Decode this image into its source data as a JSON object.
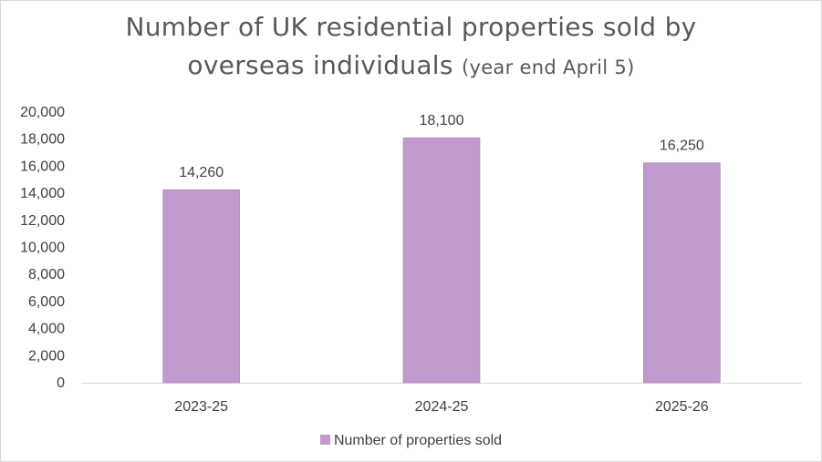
{
  "chart_data": {
    "type": "bar",
    "title_main_line1": "Number of UK residential properties sold by",
    "title_main_line2": "overseas individuals",
    "title_suffix": "(year end April 5)",
    "categories": [
      "2023-25",
      "2024-25",
      "2025-26"
    ],
    "series": [
      {
        "name": "Number of properties sold",
        "values": [
          14260,
          18100,
          16250
        ],
        "data_labels": [
          "14,260",
          "18,100",
          "16,250"
        ],
        "color": "#c09ace"
      }
    ],
    "ylim": [
      0,
      20000
    ],
    "yticks": [
      0,
      2000,
      4000,
      6000,
      8000,
      10000,
      12000,
      14000,
      16000,
      18000,
      20000
    ],
    "ytick_labels": [
      "0",
      "2,000",
      "4,000",
      "6,000",
      "8,000",
      "10,000",
      "12,000",
      "14,000",
      "16,000",
      "18,000",
      "20,000"
    ],
    "grid": false,
    "legend_position": "bottom"
  }
}
